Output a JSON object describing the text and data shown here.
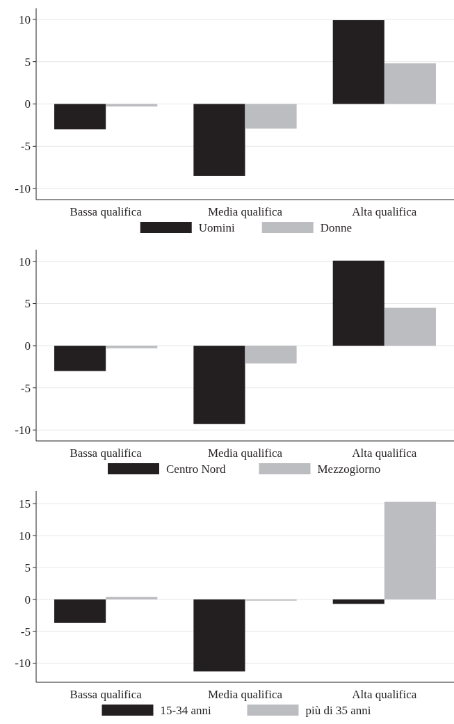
{
  "chart_data": [
    {
      "type": "bar",
      "categories": [
        "Bassa qualifica",
        "Media qualifica",
        "Alta qualifica"
      ],
      "series": [
        {
          "name": "Uomini",
          "color": "#231f20",
          "values": [
            -3.0,
            -8.5,
            9.9
          ]
        },
        {
          "name": "Donne",
          "color": "#bcbdc0",
          "values": [
            -0.3,
            -2.9,
            4.8
          ]
        }
      ],
      "ylim": [
        -11.3,
        11.3
      ],
      "yticks": [
        -10,
        -5,
        0,
        5,
        10
      ],
      "grid": "y",
      "legend": "bottom"
    },
    {
      "type": "bar",
      "categories": [
        "Bassa qualifica",
        "Media qualifica",
        "Alta qualifica"
      ],
      "series": [
        {
          "name": "Centro Nord",
          "color": "#231f20",
          "values": [
            -3.0,
            -9.3,
            10.1
          ]
        },
        {
          "name": "Mezzogiorno",
          "color": "#bcbdc0",
          "values": [
            -0.3,
            -2.1,
            4.5
          ]
        }
      ],
      "ylim": [
        -11.3,
        11.4
      ],
      "yticks": [
        -10,
        -5,
        0,
        5,
        10
      ],
      "grid": "y",
      "legend": "bottom"
    },
    {
      "type": "bar",
      "categories": [
        "Bassa qualifica",
        "Media qualifica",
        "Alta qualifica"
      ],
      "series": [
        {
          "name": "15-34 anni",
          "color": "#231f20",
          "values": [
            -3.7,
            -11.3,
            -0.7
          ]
        },
        {
          "name": "più di 35 anni",
          "color": "#bcbdc0",
          "values": [
            0.4,
            -0.2,
            15.3
          ]
        }
      ],
      "ylim": [
        -13,
        17
      ],
      "yticks": [
        -10,
        -5,
        0,
        5,
        10,
        15
      ],
      "grid": "y",
      "legend": "bottom"
    }
  ]
}
